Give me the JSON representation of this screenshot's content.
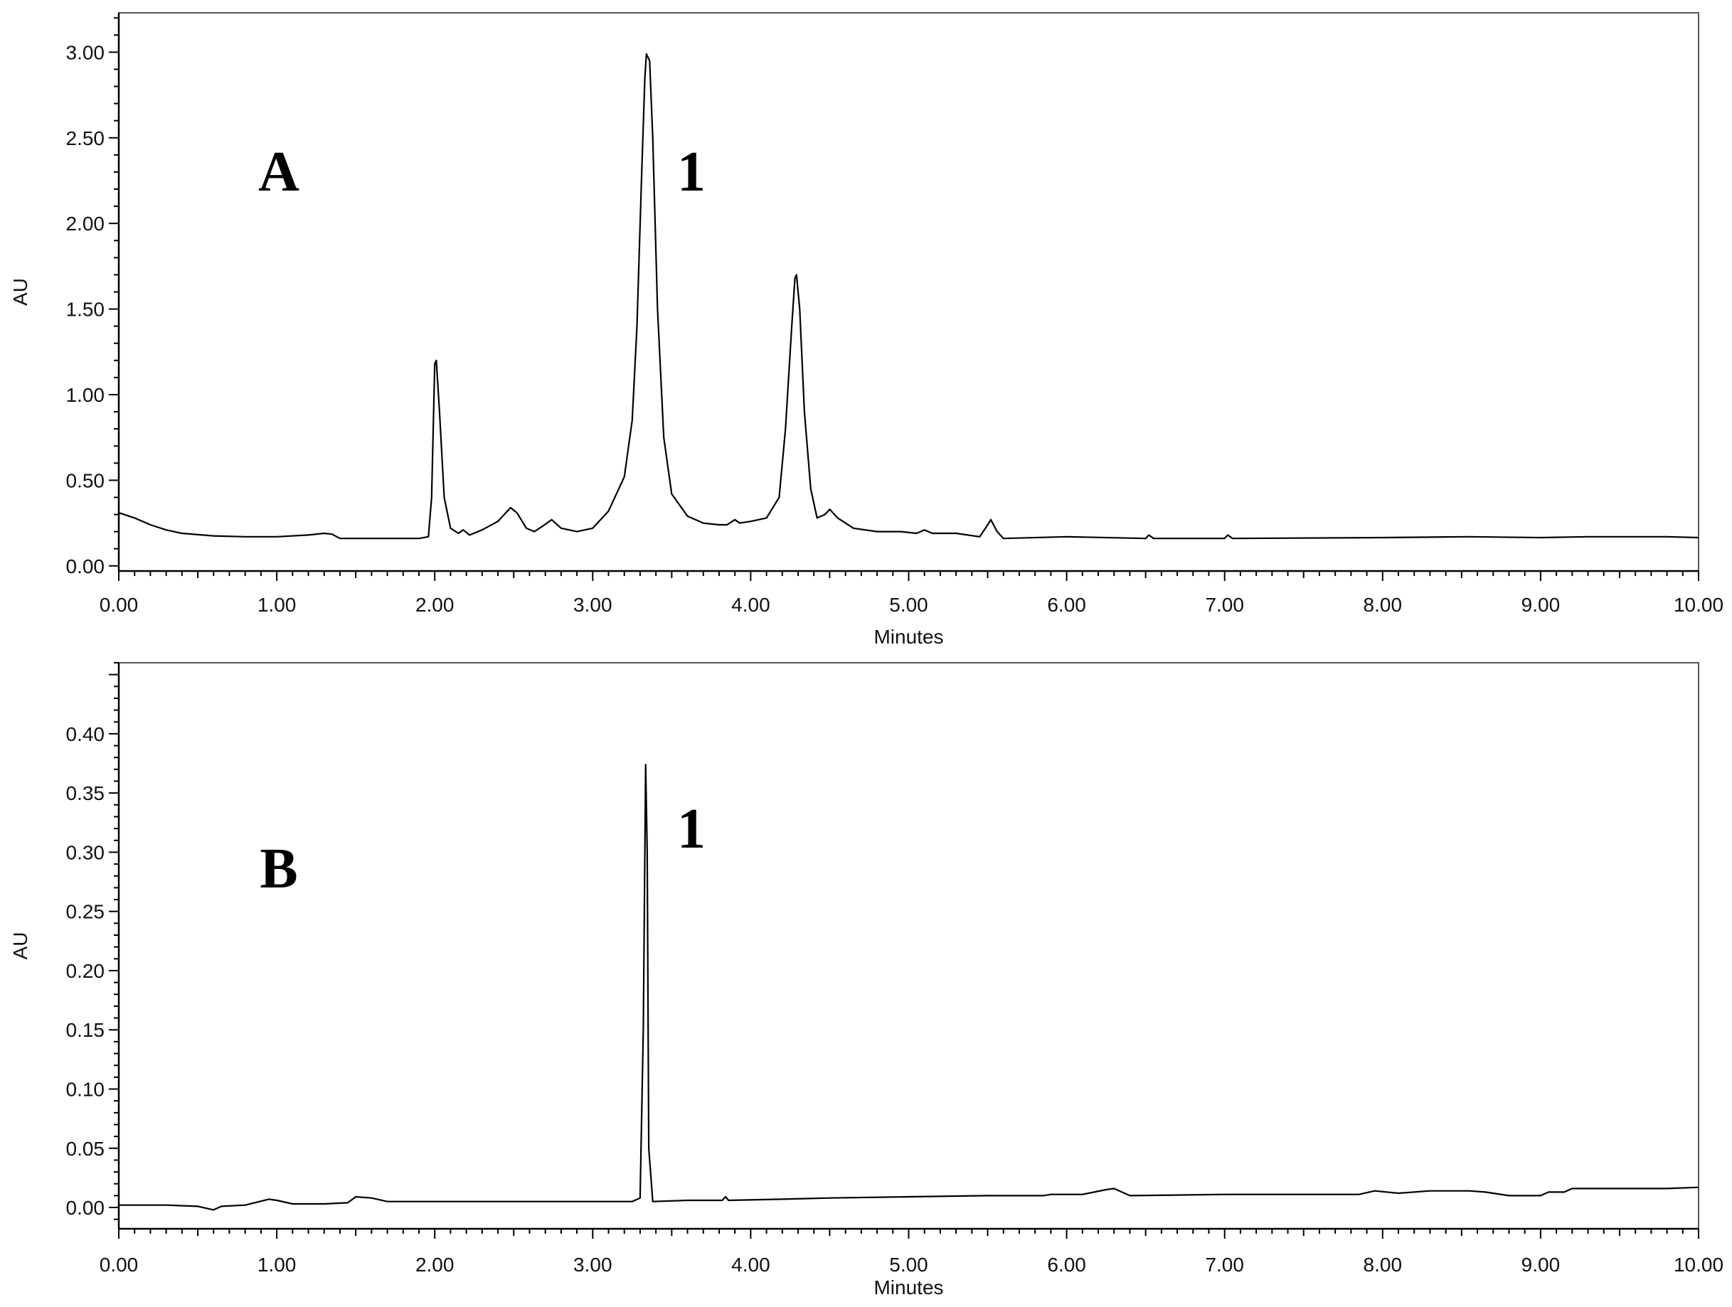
{
  "chart_data": [
    {
      "panel": "A",
      "type": "line",
      "xlabel": "Minutes",
      "ylabel": "AU",
      "xlim": [
        0,
        10
      ],
      "ylim": [
        -0.03,
        3.23
      ],
      "x_ticks": [
        "0.00",
        "1.00",
        "2.00",
        "3.00",
        "4.00",
        "5.00",
        "6.00",
        "7.00",
        "8.00",
        "9.00",
        "10.00"
      ],
      "y_ticks": [
        "0.00",
        "0.50",
        "1.00",
        "1.50",
        "2.00",
        "2.50",
        "3.00"
      ],
      "y_tick_values": [
        0,
        0.5,
        1.0,
        1.5,
        2.0,
        2.5,
        3.0
      ],
      "panel_label": "A",
      "annotations": [
        {
          "text": "1",
          "x": 3.6,
          "y": 2.4
        }
      ],
      "series": [
        {
          "points": [
            [
              0.0,
              0.31
            ],
            [
              0.1,
              0.28
            ],
            [
              0.2,
              0.24
            ],
            [
              0.3,
              0.21
            ],
            [
              0.4,
              0.19
            ],
            [
              0.6,
              0.175
            ],
            [
              0.8,
              0.17
            ],
            [
              1.0,
              0.17
            ],
            [
              1.2,
              0.18
            ],
            [
              1.3,
              0.19
            ],
            [
              1.35,
              0.185
            ],
            [
              1.4,
              0.16
            ],
            [
              1.6,
              0.16
            ],
            [
              1.9,
              0.16
            ],
            [
              1.96,
              0.17
            ],
            [
              1.98,
              0.4
            ],
            [
              2.0,
              1.18
            ],
            [
              2.01,
              1.2
            ],
            [
              2.03,
              0.9
            ],
            [
              2.06,
              0.4
            ],
            [
              2.1,
              0.22
            ],
            [
              2.15,
              0.19
            ],
            [
              2.18,
              0.21
            ],
            [
              2.22,
              0.18
            ],
            [
              2.3,
              0.21
            ],
            [
              2.4,
              0.26
            ],
            [
              2.48,
              0.34
            ],
            [
              2.52,
              0.31
            ],
            [
              2.58,
              0.22
            ],
            [
              2.63,
              0.2
            ],
            [
              2.68,
              0.23
            ],
            [
              2.74,
              0.27
            ],
            [
              2.8,
              0.22
            ],
            [
              2.9,
              0.2
            ],
            [
              3.0,
              0.22
            ],
            [
              3.1,
              0.32
            ],
            [
              3.2,
              0.52
            ],
            [
              3.25,
              0.85
            ],
            [
              3.28,
              1.4
            ],
            [
              3.31,
              2.3
            ],
            [
              3.33,
              2.85
            ],
            [
              3.34,
              2.99
            ],
            [
              3.36,
              2.95
            ],
            [
              3.38,
              2.5
            ],
            [
              3.41,
              1.5
            ],
            [
              3.45,
              0.75
            ],
            [
              3.5,
              0.42
            ],
            [
              3.6,
              0.29
            ],
            [
              3.7,
              0.25
            ],
            [
              3.8,
              0.24
            ],
            [
              3.85,
              0.24
            ],
            [
              3.9,
              0.27
            ],
            [
              3.93,
              0.25
            ],
            [
              4.0,
              0.26
            ],
            [
              4.1,
              0.28
            ],
            [
              4.18,
              0.4
            ],
            [
              4.22,
              0.8
            ],
            [
              4.26,
              1.4
            ],
            [
              4.28,
              1.68
            ],
            [
              4.29,
              1.7
            ],
            [
              4.31,
              1.5
            ],
            [
              4.34,
              0.9
            ],
            [
              4.38,
              0.45
            ],
            [
              4.42,
              0.28
            ],
            [
              4.47,
              0.3
            ],
            [
              4.5,
              0.33
            ],
            [
              4.55,
              0.28
            ],
            [
              4.65,
              0.22
            ],
            [
              4.8,
              0.2
            ],
            [
              4.95,
              0.2
            ],
            [
              5.05,
              0.19
            ],
            [
              5.1,
              0.21
            ],
            [
              5.15,
              0.19
            ],
            [
              5.3,
              0.19
            ],
            [
              5.45,
              0.17
            ],
            [
              5.5,
              0.24
            ],
            [
              5.52,
              0.27
            ],
            [
              5.56,
              0.2
            ],
            [
              5.6,
              0.16
            ],
            [
              6.0,
              0.17
            ],
            [
              6.5,
              0.16
            ],
            [
              6.52,
              0.18
            ],
            [
              6.55,
              0.16
            ],
            [
              7.0,
              0.16
            ],
            [
              7.02,
              0.18
            ],
            [
              7.05,
              0.16
            ],
            [
              8.0,
              0.165
            ],
            [
              8.55,
              0.17
            ],
            [
              9.0,
              0.165
            ],
            [
              9.3,
              0.17
            ],
            [
              9.8,
              0.17
            ],
            [
              10.0,
              0.165
            ]
          ]
        }
      ]
    },
    {
      "panel": "B",
      "type": "line",
      "xlabel": "Minutes",
      "ylabel": "AU",
      "xlim": [
        0,
        10
      ],
      "ylim": [
        -0.018,
        0.46
      ],
      "x_ticks": [
        "0.00",
        "1.00",
        "2.00",
        "3.00",
        "4.00",
        "5.00",
        "6.00",
        "7.00",
        "8.00",
        "9.00",
        "10.00"
      ],
      "y_ticks": [
        "0.00",
        "0.05",
        "0.10",
        "0.15",
        "0.20",
        "0.25",
        "0.30",
        "0.35",
        "0.40"
      ],
      "y_tick_values": [
        0,
        0.05,
        0.1,
        0.15,
        0.2,
        0.25,
        0.3,
        0.35,
        0.4
      ],
      "panel_label": "B",
      "annotations": [
        {
          "text": "1",
          "x": 3.6,
          "y": 0.325
        }
      ],
      "series": [
        {
          "points": [
            [
              0.0,
              0.002
            ],
            [
              0.3,
              0.002
            ],
            [
              0.5,
              0.001
            ],
            [
              0.6,
              -0.002
            ],
            [
              0.65,
              0.001
            ],
            [
              0.8,
              0.002
            ],
            [
              0.95,
              0.007
            ],
            [
              1.0,
              0.006
            ],
            [
              1.1,
              0.003
            ],
            [
              1.3,
              0.003
            ],
            [
              1.45,
              0.004
            ],
            [
              1.5,
              0.009
            ],
            [
              1.6,
              0.008
            ],
            [
              1.7,
              0.005
            ],
            [
              2.0,
              0.005
            ],
            [
              2.5,
              0.005
            ],
            [
              3.0,
              0.005
            ],
            [
              3.25,
              0.005
            ],
            [
              3.3,
              0.008
            ],
            [
              3.32,
              0.15
            ],
            [
              3.335,
              0.374
            ],
            [
              3.345,
              0.3
            ],
            [
              3.355,
              0.05
            ],
            [
              3.38,
              0.005
            ],
            [
              3.6,
              0.006
            ],
            [
              3.82,
              0.006
            ],
            [
              3.84,
              0.009
            ],
            [
              3.86,
              0.006
            ],
            [
              4.2,
              0.007
            ],
            [
              4.5,
              0.008
            ],
            [
              5.0,
              0.009
            ],
            [
              5.5,
              0.01
            ],
            [
              5.85,
              0.01
            ],
            [
              5.9,
              0.011
            ],
            [
              6.1,
              0.011
            ],
            [
              6.25,
              0.015
            ],
            [
              6.3,
              0.016
            ],
            [
              6.4,
              0.01
            ],
            [
              7.0,
              0.011
            ],
            [
              7.5,
              0.011
            ],
            [
              7.85,
              0.011
            ],
            [
              7.95,
              0.014
            ],
            [
              8.1,
              0.012
            ],
            [
              8.3,
              0.014
            ],
            [
              8.55,
              0.014
            ],
            [
              8.65,
              0.013
            ],
            [
              8.8,
              0.01
            ],
            [
              9.0,
              0.01
            ],
            [
              9.05,
              0.013
            ],
            [
              9.15,
              0.013
            ],
            [
              9.2,
              0.016
            ],
            [
              9.5,
              0.016
            ],
            [
              9.8,
              0.016
            ],
            [
              10.0,
              0.017
            ]
          ]
        }
      ]
    }
  ]
}
